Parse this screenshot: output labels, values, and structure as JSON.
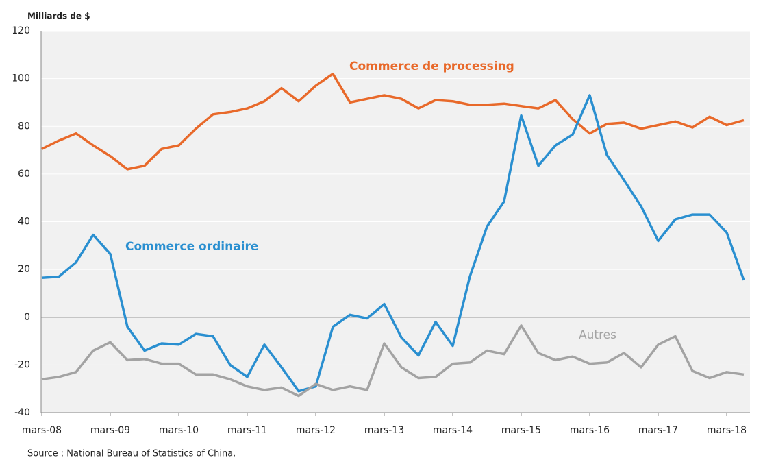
{
  "chart_data": {
    "type": "line",
    "y_label": "Milliards de $",
    "source": "Source : National Bureau of Statistics of China.",
    "categories": [
      "mars-08",
      null,
      null,
      null,
      "mars-09",
      null,
      null,
      null,
      "mars-10",
      null,
      null,
      null,
      "mars-11",
      null,
      null,
      null,
      "mars-12",
      null,
      null,
      null,
      "mars-13",
      null,
      null,
      null,
      "mars-14",
      null,
      null,
      null,
      "mars-15",
      null,
      null,
      null,
      "mars-16",
      null,
      null,
      null,
      "mars-17",
      null,
      null,
      null,
      "mars-18",
      null
    ],
    "series": [
      {
        "name": "Commerce de processing",
        "color": "#e8692a",
        "values": [
          70.5,
          74,
          77,
          72,
          67.5,
          62,
          63.5,
          70.5,
          72,
          79,
          85,
          86,
          87.5,
          90.5,
          96,
          90.5,
          97,
          102,
          90,
          91.5,
          93,
          91.5,
          87.5,
          91,
          90.5,
          89,
          89,
          89.5,
          88.5,
          87.5,
          91,
          83,
          77,
          81,
          81.5,
          79,
          80.5,
          82,
          79.5,
          84,
          80.5,
          82.5
        ]
      },
      {
        "name": "Commerce ordinaire",
        "color": "#2a8fd0",
        "values": [
          16.5,
          17,
          23,
          34.5,
          26.5,
          -4,
          -14,
          -11,
          -11.5,
          -7,
          -8,
          -20,
          -25,
          -11.5,
          -21,
          -31,
          -29,
          -4,
          1,
          -0.5,
          5.5,
          -8.5,
          -16,
          -2,
          -12,
          17,
          38,
          48.5,
          84.5,
          63.5,
          72,
          76.5,
          93,
          68,
          57.5,
          46.5,
          32,
          41,
          43,
          43,
          35.5,
          15.5
        ]
      },
      {
        "name": "Autres",
        "color": "#a3a3a3",
        "values": [
          -26,
          -25,
          -23,
          -14,
          -10.5,
          -18,
          -17.5,
          -19.5,
          -19.5,
          -24,
          -24,
          -26,
          -29,
          -30.5,
          -29.5,
          -33,
          -28,
          -30.5,
          -29,
          -30.5,
          -11,
          -21,
          -25.5,
          -25,
          -19.5,
          -19,
          -14,
          -15.5,
          -3.5,
          -15,
          -18,
          -16.5,
          -19.5,
          -19,
          -15,
          -21,
          -11.5,
          -8,
          -22.5,
          -25.5,
          -23,
          -24
        ]
      }
    ],
    "ylim": [
      -40,
      120
    ],
    "yticks": [
      -40,
      -20,
      0,
      20,
      40,
      60,
      80,
      100,
      120
    ],
    "grid": true
  }
}
